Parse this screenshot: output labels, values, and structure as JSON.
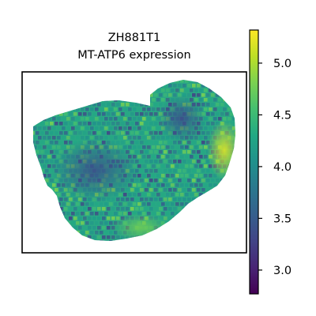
{
  "chart_data": {
    "type": "heatmap",
    "subtype": "spatial-hexbin",
    "title": "ZH881T1",
    "subtitle": "MT-ATP6 expression",
    "xlabel": "",
    "ylabel": "",
    "colormap": "viridis",
    "colorbar": {
      "vmin": 2.77,
      "vmax": 5.32,
      "ticks": [
        "3.0",
        "3.5",
        "4.0",
        "4.5",
        "5.0"
      ],
      "tick_values": [
        3.0,
        3.5,
        4.0,
        4.5,
        5.0
      ]
    },
    "regions": [
      {
        "name": "bulk",
        "value_mean": 4.15
      },
      {
        "name": "low-expression center-left",
        "value_mean": 3.6
      },
      {
        "name": "high-expression right edge",
        "value_mean": 5.05
      },
      {
        "name": "high-expression bottom",
        "value_mean": 4.6
      }
    ],
    "grid": false,
    "legend": "none"
  }
}
